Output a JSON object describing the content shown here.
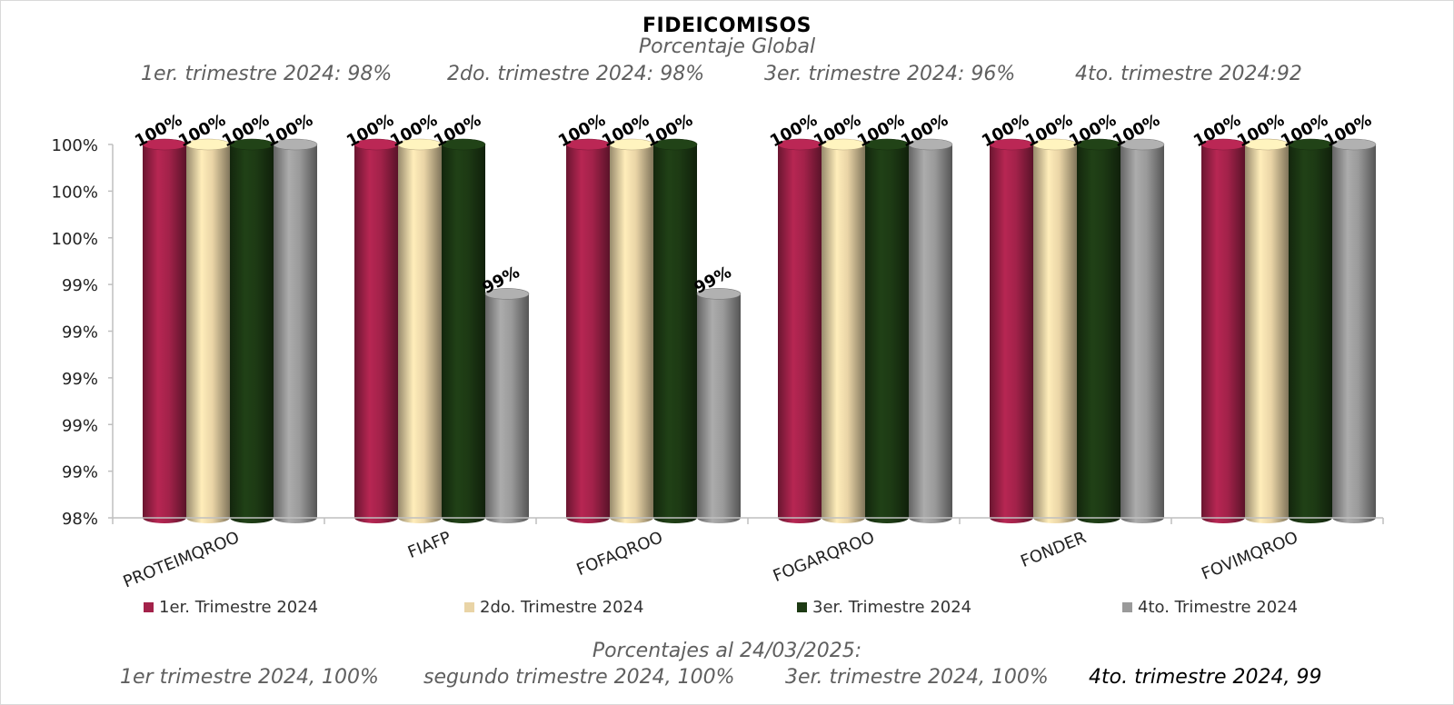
{
  "colors": {
    "q1": "#a3224a",
    "q2": "#e9d4a6",
    "q3": "#1d3a14",
    "q4": "#9a9a9a"
  },
  "quarter_notes": [
    "1er. trimestre 2024: 98%",
    "2do. trimestre 2024: 98%",
    "3er. trimestre 2024: 96%",
    "4to. trimestre 2024:92"
  ],
  "footer": {
    "heading": "Porcentajes al 24/03/2025:",
    "items": [
      "1er trimestre  2024,  100%",
      "segundo trimestre 2024, 100%",
      "3er. trimestre 2024, 100%",
      "4to. trimestre 2024, 99"
    ]
  },
  "chart_data": {
    "type": "bar",
    "title": "FIDEICOMISOS",
    "subtitle": "Porcentaje Global",
    "categories": [
      "PROTEIMQROO",
      "FIAFP",
      "FOFAQROO",
      "FOGARQROO",
      "FONDER",
      "FOVIMQROO"
    ],
    "series": [
      {
        "name": "1er. Trimestre 2024",
        "values": [
          100,
          100,
          100,
          100,
          100,
          100
        ],
        "labels": [
          "100%",
          "100%",
          "100%",
          "100%",
          "100%",
          "100%"
        ]
      },
      {
        "name": "2do. Trimestre 2024",
        "values": [
          100,
          100,
          100,
          100,
          100,
          100
        ],
        "labels": [
          "100%",
          "100%",
          "100%",
          "100%",
          "100%",
          "100%"
        ]
      },
      {
        "name": "3er. Trimestre 2024",
        "values": [
          100,
          100,
          100,
          100,
          100,
          100
        ],
        "labels": [
          "100%",
          "100%",
          "100%",
          "100%",
          "100%",
          "100%"
        ]
      },
      {
        "name": "4to. Trimestre 2024",
        "values": [
          100,
          99.2,
          99.2,
          100,
          100,
          100
        ],
        "labels": [
          "100%",
          "99%",
          "99%",
          "100%",
          "100%",
          "100%"
        ]
      }
    ],
    "ylim": [
      98,
      100
    ],
    "yticks": [
      98,
      98.25,
      98.5,
      98.75,
      99,
      99.25,
      99.5,
      99.75,
      100
    ],
    "ytick_labels": [
      "98%",
      "99%",
      "99%",
      "99%",
      "99%",
      "99%",
      "100%",
      "100%",
      "100%"
    ],
    "legend_position": "bottom",
    "grid": false
  }
}
